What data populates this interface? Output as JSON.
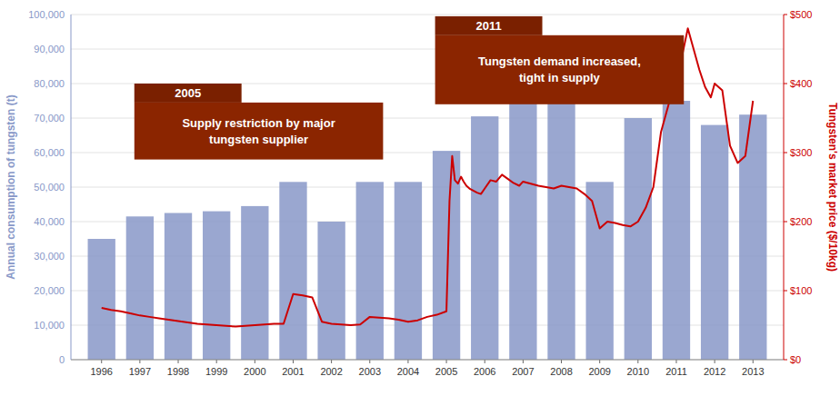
{
  "chart_data": {
    "type": "bar",
    "ylabel": "Annual consumption of tungsten (t)",
    "y2label": "Tungsten's market price ($/10kg)",
    "xlim": [
      1995.2,
      2013.8
    ],
    "xticks": [
      1996,
      1997,
      1998,
      1999,
      2000,
      2001,
      2002,
      2003,
      2004,
      2005,
      2006,
      2007,
      2008,
      2009,
      2010,
      2011,
      2012,
      2013
    ],
    "ylim": [
      0,
      100000
    ],
    "yticks": [
      0,
      {
        "value": 10000,
        "label": "10,000"
      },
      {
        "value": 20000,
        "label": "20,000"
      },
      {
        "value": 30000,
        "label": "30,000"
      },
      {
        "value": 40000,
        "label": "40,000"
      },
      {
        "value": 50000,
        "label": "50,000"
      },
      {
        "value": 60000,
        "label": "60,000"
      },
      {
        "value": 70000,
        "label": "70,000"
      },
      {
        "value": 80000,
        "label": "80,000"
      },
      {
        "value": 90000,
        "label": "90,000"
      },
      {
        "value": 100000,
        "label": "100,000"
      }
    ],
    "y2lim": [
      0,
      500
    ],
    "y2ticks": [
      {
        "value": 0,
        "label": "$0"
      },
      {
        "value": 100,
        "label": "$100"
      },
      {
        "value": 200,
        "label": "$200"
      },
      {
        "value": 300,
        "label": "$300"
      },
      {
        "value": 400,
        "label": "$400"
      },
      {
        "value": 500,
        "label": "$500"
      }
    ],
    "grid": true,
    "series": [
      {
        "type": "bar",
        "color": "#8898C8",
        "x": [
          1996,
          1997,
          1998,
          1999,
          2000,
          2001,
          2002,
          2003,
          2004,
          2005,
          2006,
          2007,
          2008,
          2009,
          2010,
          2011,
          2012,
          2013
        ],
        "values": [
          35000,
          41500,
          42500,
          43000,
          44500,
          51500,
          40000,
          51500,
          51500,
          60500,
          70500,
          76500,
          75000,
          51500,
          70000,
          75000,
          68000,
          71000
        ]
      },
      {
        "type": "line",
        "axis": "y2",
        "color": "#CC0000",
        "x": [
          1996,
          1996.25,
          1996.5,
          1996.75,
          1997,
          1997.25,
          1997.5,
          1997.75,
          1998,
          1998.25,
          1998.5,
          1998.75,
          1999,
          1999.25,
          1999.5,
          1999.75,
          2000,
          2000.25,
          2000.5,
          2000.75,
          2001,
          2001.25,
          2001.5,
          2001.75,
          2002,
          2002.25,
          2002.5,
          2002.75,
          2003,
          2003.25,
          2003.5,
          2003.75,
          2004,
          2004.25,
          2004.5,
          2004.75,
          2005,
          2005.08,
          2005.15,
          2005.22,
          2005.3,
          2005.38,
          2005.45,
          2005.52,
          2005.6,
          2005.7,
          2005.8,
          2005.9,
          2006,
          2006.15,
          2006.3,
          2006.45,
          2006.6,
          2006.75,
          2006.9,
          2007,
          2007.2,
          2007.4,
          2007.6,
          2007.8,
          2008,
          2008.2,
          2008.4,
          2008.6,
          2008.8,
          2009,
          2009.2,
          2009.4,
          2009.6,
          2009.8,
          2010,
          2010.2,
          2010.4,
          2010.6,
          2010.8,
          2011,
          2011.15,
          2011.3,
          2011.45,
          2011.6,
          2011.75,
          2011.9,
          2012,
          2012.2,
          2012.4,
          2012.6,
          2012.8,
          2013
        ],
        "values": [
          75,
          72,
          70,
          67,
          64,
          62,
          60,
          58,
          56,
          54,
          52,
          51,
          50,
          49,
          48,
          49,
          50,
          51,
          52,
          52,
          95,
          93,
          90,
          55,
          52,
          51,
          50,
          51,
          62,
          61,
          60,
          58,
          55,
          57,
          62,
          65,
          70,
          230,
          295,
          260,
          255,
          265,
          258,
          252,
          248,
          245,
          242,
          240,
          248,
          260,
          258,
          268,
          262,
          256,
          252,
          258,
          255,
          252,
          250,
          248,
          252,
          250,
          248,
          240,
          230,
          190,
          200,
          198,
          195,
          193,
          200,
          220,
          250,
          330,
          370,
          460,
          440,
          480,
          450,
          420,
          395,
          380,
          400,
          390,
          310,
          285,
          295,
          375
        ]
      }
    ],
    "annotations": [
      {
        "title": "2005",
        "text": "Supply restriction by major\ntungsten supplier",
        "color": "#8B2500"
      },
      {
        "title": "2011",
        "text": "Tungsten demand increased,\ntight in supply",
        "color": "#8B2500"
      }
    ]
  }
}
